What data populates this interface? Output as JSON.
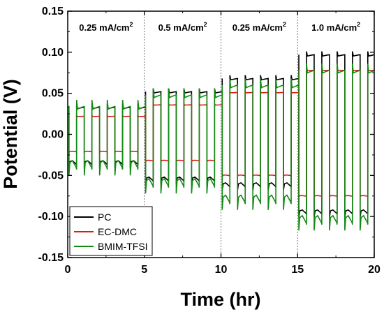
{
  "chart_data": {
    "type": "line",
    "xlabel": "Time (hr)",
    "ylabel": "Potential (V)",
    "xlim": [
      0,
      20
    ],
    "ylim": [
      -0.15,
      0.15
    ],
    "x_ticks": [
      0,
      5,
      10,
      15,
      20
    ],
    "y_ticks": [
      -0.15,
      -0.1,
      -0.05,
      0.0,
      0.05,
      0.1,
      0.15
    ],
    "x_tick_labels": [
      "0",
      "5",
      "10",
      "15",
      "20"
    ],
    "y_tick_labels": [
      "-0.15",
      "-0.10",
      "-0.05",
      "0.00",
      "0.05",
      "0.10",
      "0.15"
    ],
    "grid": false,
    "legend_position": "bottom-left",
    "stage_boundaries": [
      5,
      10,
      15
    ],
    "stage_annotations": [
      {
        "text": "0.25 mA/cm",
        "sup": "2",
        "x": 2.5
      },
      {
        "text": "0.5 mA/cm",
        "sup": "2",
        "x": 7.5
      },
      {
        "text": "0.25 mA/cm",
        "sup": "2",
        "x": 12.5
      },
      {
        "text": "1.0 mA/cm",
        "sup": "2",
        "x": 17.5
      }
    ],
    "cycle_period_hr": 1,
    "cycle_start_hr": 0.08,
    "series": [
      {
        "name": "PC",
        "color": "#000000",
        "stage_levels": [
          {
            "t_start": 0,
            "t_end": 5,
            "plating": -0.035,
            "stripping": 0.033
          },
          {
            "t_start": 5,
            "t_end": 10,
            "plating": -0.055,
            "stripping": 0.052
          },
          {
            "t_start": 10,
            "t_end": 15,
            "plating": -0.062,
            "stripping": 0.068
          },
          {
            "t_start": 15,
            "t_end": 20,
            "plating": -0.095,
            "stripping": 0.097
          }
        ]
      },
      {
        "name": "EC-DMC",
        "color": "#dd1a10",
        "stage_levels": [
          {
            "t_start": 0,
            "t_end": 5,
            "plating": -0.021,
            "stripping": 0.022
          },
          {
            "t_start": 5,
            "t_end": 10,
            "plating": -0.032,
            "stripping": 0.036
          },
          {
            "t_start": 10,
            "t_end": 15,
            "plating": -0.05,
            "stripping": 0.051
          },
          {
            "t_start": 15,
            "t_end": 20,
            "plating": -0.075,
            "stripping": 0.078
          }
        ]
      },
      {
        "name": "BMIM-TFSI",
        "color": "#128a12",
        "stage_levels": [
          {
            "t_start": 0,
            "t_end": 5,
            "plating": -0.038,
            "stripping": 0.034
          },
          {
            "t_start": 5,
            "t_end": 10,
            "plating": -0.06,
            "stripping": 0.048
          },
          {
            "t_start": 10,
            "t_end": 15,
            "plating": -0.08,
            "stripping": 0.06
          },
          {
            "t_start": 15,
            "t_end": 20,
            "plating": -0.105,
            "stripping": 0.078
          }
        ]
      }
    ]
  }
}
